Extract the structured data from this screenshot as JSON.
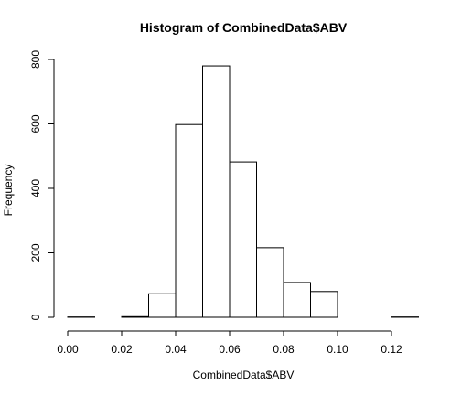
{
  "chart_data": {
    "type": "bar",
    "title": "Histogram of CombinedData$ABV",
    "xlabel": "CombinedData$ABV",
    "ylabel": "Frequency",
    "xlim": [
      0,
      0.13
    ],
    "ylim": [
      0,
      800
    ],
    "x_ticks": [
      "0.00",
      "0.02",
      "0.04",
      "0.06",
      "0.08",
      "0.10",
      "0.12"
    ],
    "x_tick_values": [
      0,
      0.02,
      0.04,
      0.06,
      0.08,
      0.1,
      0.12
    ],
    "y_ticks": [
      "0",
      "200",
      "400",
      "600",
      "800"
    ],
    "y_tick_values": [
      0,
      200,
      400,
      600,
      800
    ],
    "bins": [
      {
        "start": 0.0,
        "end": 0.01,
        "count": 1
      },
      {
        "start": 0.01,
        "end": 0.02,
        "count": 0
      },
      {
        "start": 0.02,
        "end": 0.03,
        "count": 2
      },
      {
        "start": 0.03,
        "end": 0.04,
        "count": 73
      },
      {
        "start": 0.04,
        "end": 0.05,
        "count": 598
      },
      {
        "start": 0.05,
        "end": 0.06,
        "count": 780
      },
      {
        "start": 0.06,
        "end": 0.07,
        "count": 482
      },
      {
        "start": 0.07,
        "end": 0.08,
        "count": 216
      },
      {
        "start": 0.08,
        "end": 0.09,
        "count": 108
      },
      {
        "start": 0.09,
        "end": 0.1,
        "count": 80
      },
      {
        "start": 0.1,
        "end": 0.11,
        "count": 0
      },
      {
        "start": 0.11,
        "end": 0.12,
        "count": 0
      },
      {
        "start": 0.12,
        "end": 0.13,
        "count": 1
      }
    ]
  }
}
